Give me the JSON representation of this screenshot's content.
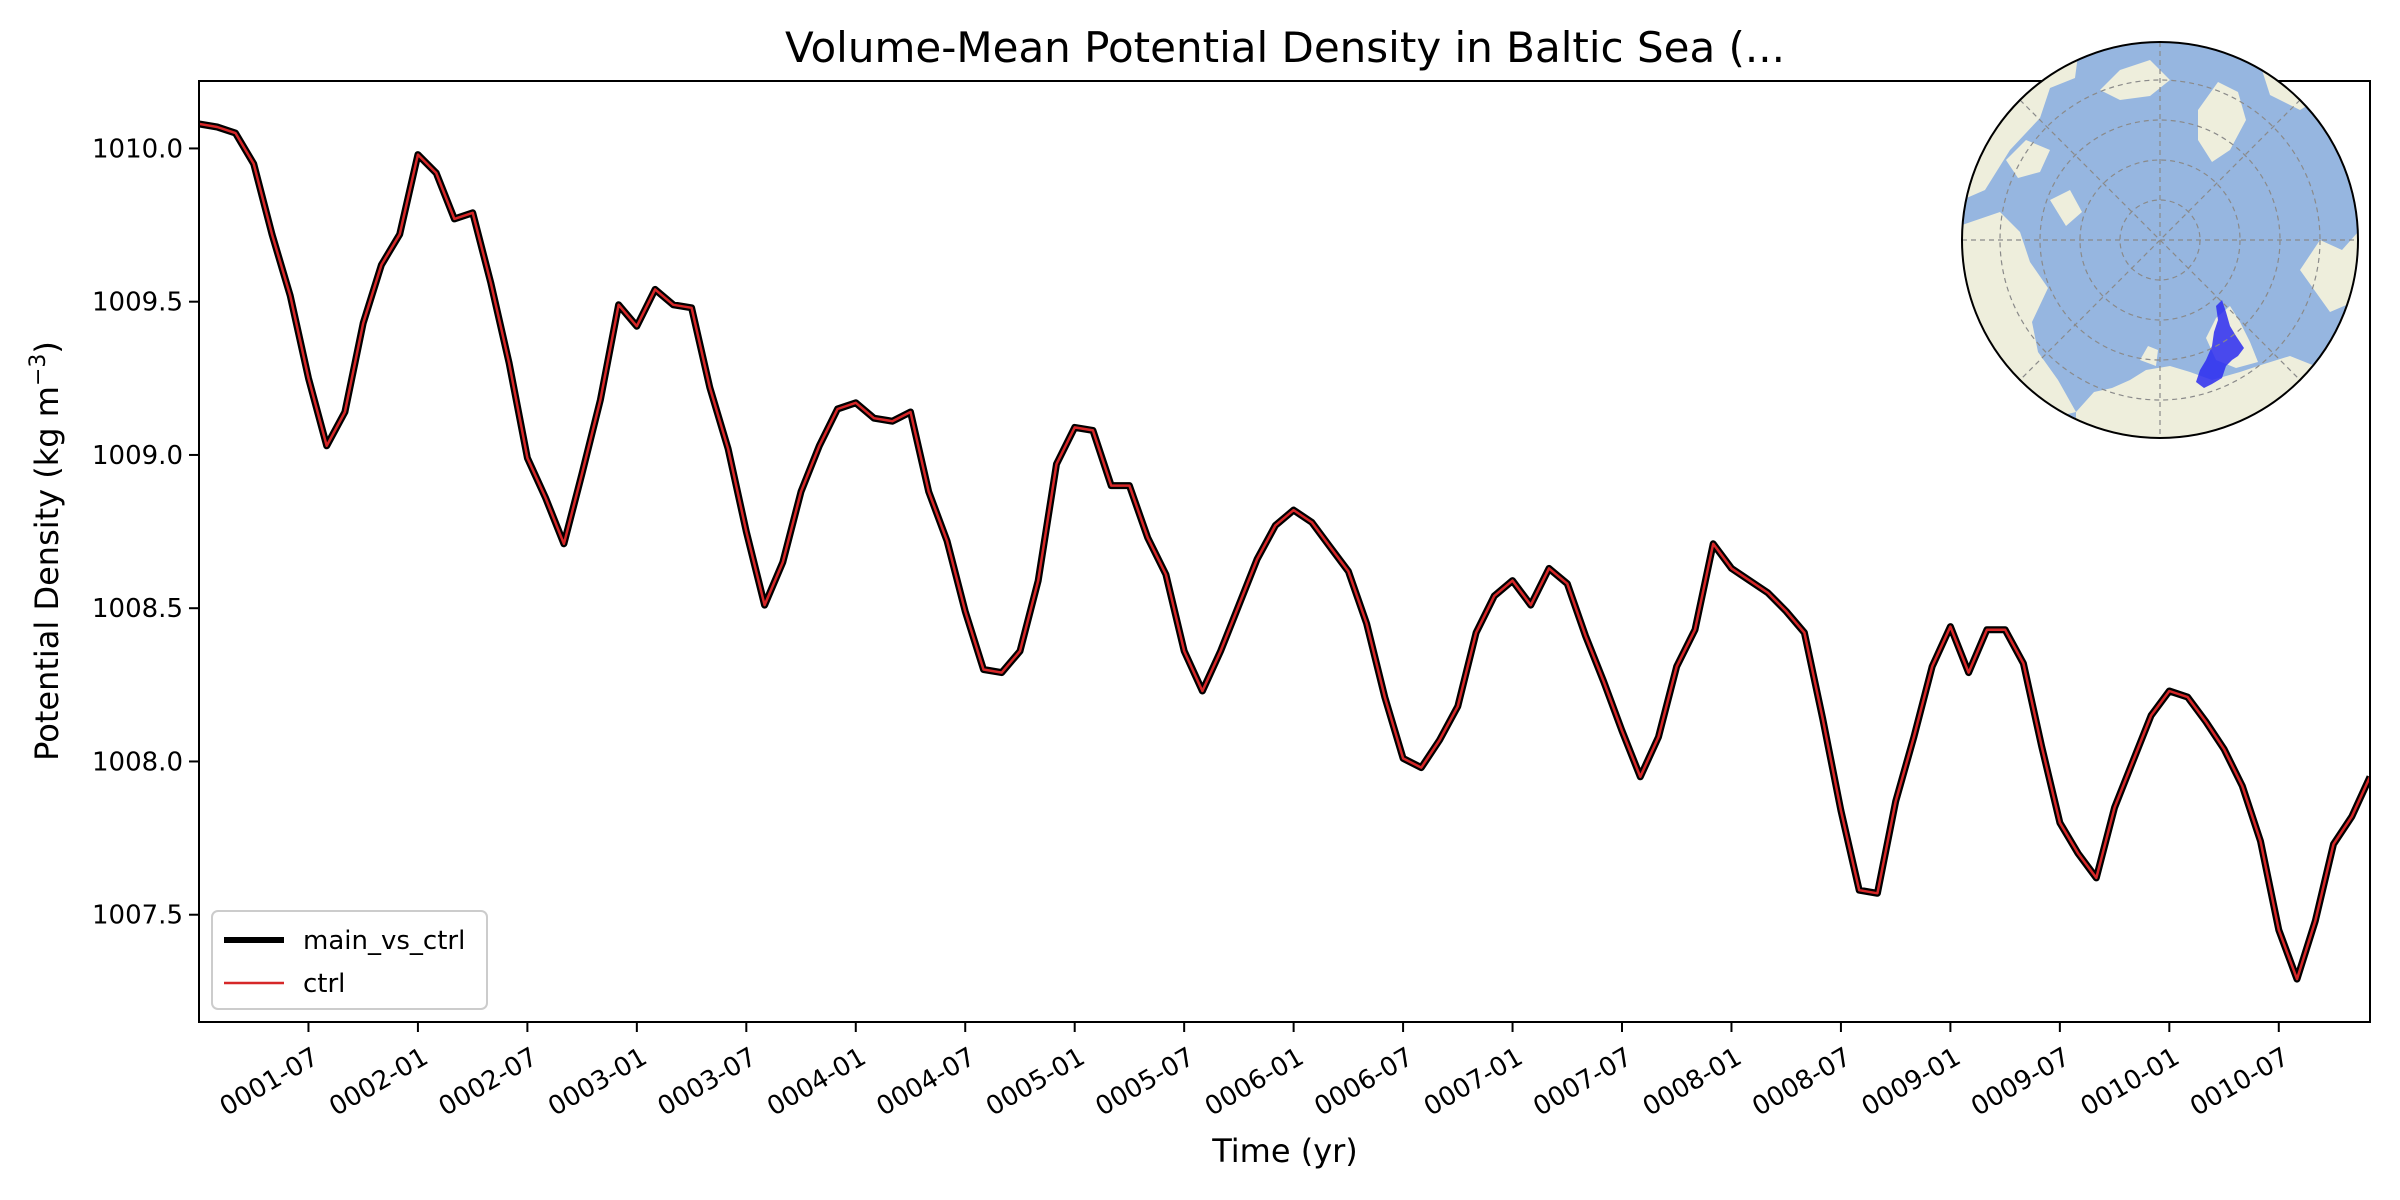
{
  "chart_data": {
    "type": "line",
    "title": "Volume-Mean Potential Density in Baltic Sea (...",
    "xlabel": "Time (yr)",
    "ylabel": "Potential Density (kg m",
    "ylabel_sup": "−3",
    "ylabel_end": ")",
    "x_start": "0001-01",
    "x_end": "0010-12",
    "xlim": [
      0,
      119
    ],
    "ylim": [
      1007.15,
      1010.22
    ],
    "x_ticks": [
      {
        "label": "0001-07",
        "index": 6
      },
      {
        "label": "0002-01",
        "index": 12
      },
      {
        "label": "0002-07",
        "index": 18
      },
      {
        "label": "0003-01",
        "index": 24
      },
      {
        "label": "0003-07",
        "index": 30
      },
      {
        "label": "0004-01",
        "index": 36
      },
      {
        "label": "0004-07",
        "index": 42
      },
      {
        "label": "0005-01",
        "index": 48
      },
      {
        "label": "0005-07",
        "index": 54
      },
      {
        "label": "0006-01",
        "index": 60
      },
      {
        "label": "0006-07",
        "index": 66
      },
      {
        "label": "0007-01",
        "index": 72
      },
      {
        "label": "0007-07",
        "index": 78
      },
      {
        "label": "0008-01",
        "index": 84
      },
      {
        "label": "0008-07",
        "index": 90
      },
      {
        "label": "0009-01",
        "index": 96
      },
      {
        "label": "0009-07",
        "index": 102
      },
      {
        "label": "0010-01",
        "index": 108
      },
      {
        "label": "0010-07",
        "index": 114
      }
    ],
    "y_ticks": [
      {
        "label": "1007.5",
        "value": 1007.5
      },
      {
        "label": "1008.0",
        "value": 1008.0
      },
      {
        "label": "1008.5",
        "value": 1008.5
      },
      {
        "label": "1009.0",
        "value": 1009.0
      },
      {
        "label": "1009.5",
        "value": 1009.5
      },
      {
        "label": "1010.0",
        "value": 1010.0
      }
    ],
    "legend_position": "lower-left",
    "series": [
      {
        "name": "main_vs_ctrl",
        "color": "#000000",
        "values": [
          1010.08,
          1010.07,
          1010.05,
          1009.95,
          1009.72,
          1009.52,
          1009.25,
          1009.03,
          1009.14,
          1009.43,
          1009.62,
          1009.72,
          1009.98,
          1009.92,
          1009.77,
          1009.79,
          1009.56,
          1009.3,
          1008.99,
          1008.86,
          1008.71,
          1008.94,
          1009.18,
          1009.49,
          1009.42,
          1009.54,
          1009.49,
          1009.48,
          1009.22,
          1009.02,
          1008.75,
          1008.51,
          1008.65,
          1008.88,
          1009.03,
          1009.15,
          1009.17,
          1009.12,
          1009.11,
          1009.14,
          1008.88,
          1008.72,
          1008.49,
          1008.3,
          1008.29,
          1008.36,
          1008.59,
          1008.97,
          1009.09,
          1009.08,
          1008.9,
          1008.9,
          1008.73,
          1008.61,
          1008.36,
          1008.23,
          1008.36,
          1008.51,
          1008.66,
          1008.77,
          1008.82,
          1008.78,
          1008.7,
          1008.62,
          1008.45,
          1008.21,
          1008.01,
          1007.98,
          1008.07,
          1008.18,
          1008.42,
          1008.54,
          1008.59,
          1008.51,
          1008.63,
          1008.58,
          1008.41,
          1008.26,
          1008.1,
          1007.95,
          1008.08,
          1008.31,
          1008.43,
          1008.71,
          1008.63,
          1008.59,
          1008.55,
          1008.49,
          1008.42,
          1008.14,
          1007.84,
          1007.58,
          1007.57,
          1007.87,
          1008.08,
          1008.31,
          1008.44,
          1008.29,
          1008.43,
          1008.43,
          1008.32,
          1008.05,
          1007.8,
          1007.7,
          1007.62,
          1007.85,
          1008.0,
          1008.15,
          1008.23,
          1008.21,
          1008.13,
          1008.04,
          1007.92,
          1007.74,
          1007.45,
          1007.29,
          1007.48,
          1007.73,
          1007.82,
          1007.95
        ]
      },
      {
        "name": "ctrl",
        "color": "#d62728",
        "values": [
          1010.08,
          1010.07,
          1010.05,
          1009.95,
          1009.72,
          1009.52,
          1009.25,
          1009.03,
          1009.14,
          1009.43,
          1009.62,
          1009.72,
          1009.98,
          1009.92,
          1009.77,
          1009.79,
          1009.56,
          1009.3,
          1008.99,
          1008.86,
          1008.71,
          1008.94,
          1009.18,
          1009.49,
          1009.42,
          1009.54,
          1009.49,
          1009.48,
          1009.22,
          1009.02,
          1008.75,
          1008.51,
          1008.65,
          1008.88,
          1009.03,
          1009.15,
          1009.17,
          1009.12,
          1009.11,
          1009.14,
          1008.88,
          1008.72,
          1008.49,
          1008.3,
          1008.29,
          1008.36,
          1008.59,
          1008.97,
          1009.09,
          1009.08,
          1008.9,
          1008.9,
          1008.73,
          1008.61,
          1008.36,
          1008.23,
          1008.36,
          1008.51,
          1008.66,
          1008.77,
          1008.82,
          1008.78,
          1008.7,
          1008.62,
          1008.45,
          1008.21,
          1008.01,
          1007.98,
          1008.07,
          1008.18,
          1008.42,
          1008.54,
          1008.59,
          1008.51,
          1008.63,
          1008.58,
          1008.41,
          1008.26,
          1008.1,
          1007.95,
          1008.08,
          1008.31,
          1008.43,
          1008.71,
          1008.63,
          1008.59,
          1008.55,
          1008.49,
          1008.42,
          1008.14,
          1007.84,
          1007.58,
          1007.57,
          1007.87,
          1008.08,
          1008.31,
          1008.44,
          1008.29,
          1008.43,
          1008.43,
          1008.32,
          1008.05,
          1007.8,
          1007.7,
          1007.62,
          1007.85,
          1008.0,
          1008.15,
          1008.23,
          1008.21,
          1008.13,
          1008.04,
          1007.92,
          1007.74,
          1007.45,
          1007.29,
          1007.48,
          1007.73,
          1007.82,
          1007.95
        ]
      }
    ],
    "inset_map": {
      "type": "north-polar-stereographic",
      "ocean_color": "#96b6e0",
      "land_color": "#eeeedc",
      "region_color": "#2b2bf0"
    }
  }
}
